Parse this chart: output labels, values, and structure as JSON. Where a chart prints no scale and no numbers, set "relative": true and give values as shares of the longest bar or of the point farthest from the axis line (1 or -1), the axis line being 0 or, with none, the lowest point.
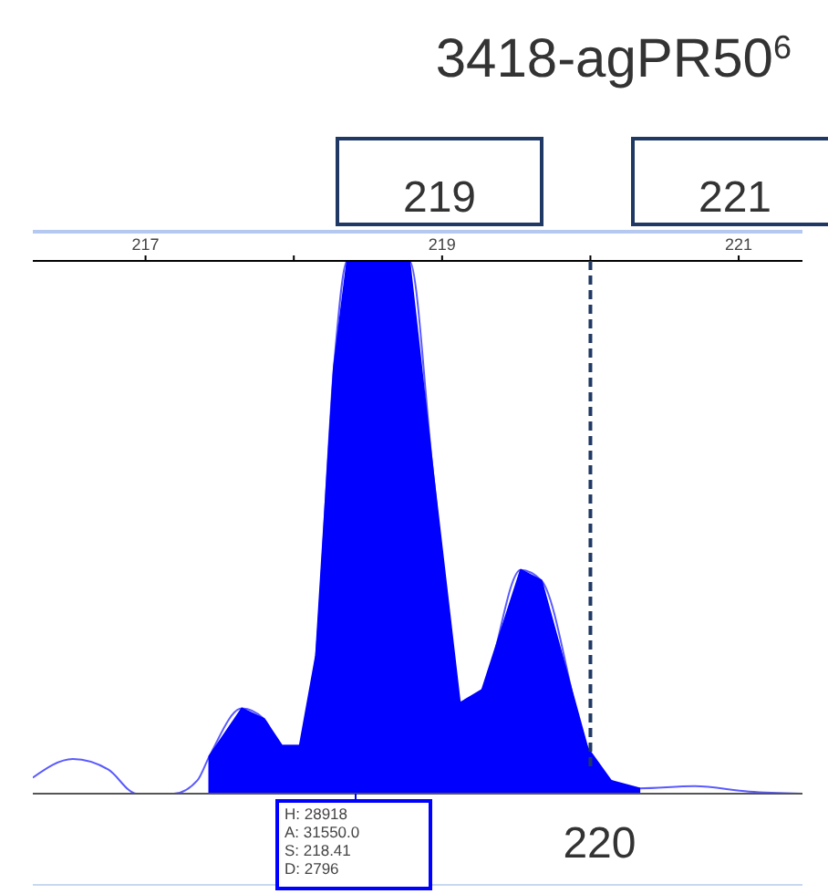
{
  "chart_data": {
    "type": "area",
    "title": "3418-agPR50$^{6}$",
    "relative": true,
    "xlim": [
      216.24,
      221.43
    ],
    "xticks": [
      217,
      {
        "value": 218,
        "label": null
      },
      219,
      {
        "value": 220,
        "label": null
      },
      221
    ],
    "series": [
      {
        "type": "line",
        "color": "#5a5aff",
        "x": [
          216.24,
          216.51,
          216.75,
          216.94,
          217.19,
          217.35,
          217.43,
          217.65,
          217.8,
          217.92,
          218.04,
          218.15,
          218.27,
          218.36,
          218.78,
          218.94,
          219.12,
          219.27,
          219.53,
          219.67,
          219.98,
          220.14,
          220.33,
          220.7,
          221.07,
          221.43
        ],
        "values": [
          0.03,
          0.065,
          0.045,
          0,
          0,
          0.025,
          0.07,
          0.16,
          0.14,
          0.09,
          0.09,
          0.26,
          0.8,
          1,
          1,
          0.6,
          0.17,
          0.195,
          0.42,
          0.4,
          0.086,
          0.024,
          0.01,
          0.014,
          0.004,
          0
        ]
      },
      {
        "color": "#0000ff",
        "x": [
          217.43,
          217.65,
          217.8,
          217.92,
          218.04,
          218.15,
          218.27,
          218.36,
          218.78,
          218.94,
          219.12,
          219.27,
          219.53,
          219.67,
          219.98,
          220.14,
          220.33
        ],
        "values": [
          0.07,
          0.16,
          0.14,
          0.09,
          0.09,
          0.26,
          0.8,
          1,
          1,
          0.6,
          0.17,
          0.195,
          0.42,
          0.4,
          0.086,
          0.024,
          0.01
        ]
      }
    ],
    "ref_lines": [
      {
        "axis": "x",
        "value": 220,
        "label": "220",
        "color": "#1f3864",
        "line_style": "dashed"
      }
    ],
    "annotations": [
      "219",
      "221",
      "H: 28918\nA: 31550.0\nS: 218.41\nD: 2796"
    ]
  }
}
